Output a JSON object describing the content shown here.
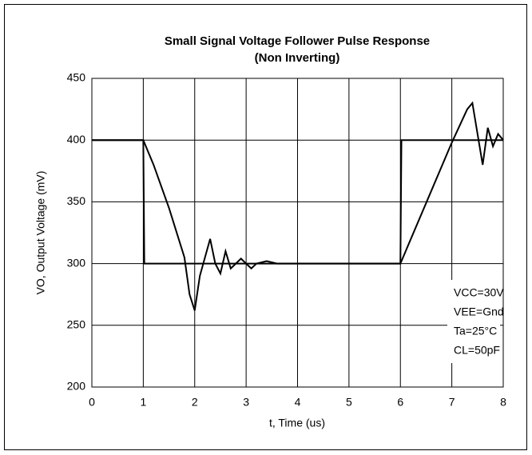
{
  "chart_data": {
    "type": "line",
    "title": "Small Signal Voltage Follower Pulse Response",
    "subtitle": "(Non Inverting)",
    "xlabel": "t, Time (us)",
    "ylabel": "VO, Output Voltage (mV)",
    "xlim": [
      0,
      8
    ],
    "xticks": [
      0,
      1,
      2,
      3,
      4,
      5,
      6,
      7,
      8
    ],
    "ylim": [
      200,
      450
    ],
    "yticks": [
      200,
      250,
      300,
      350,
      400,
      450
    ],
    "grid": true,
    "series": [
      {
        "color": "#000000",
        "x": [
          0,
          1,
          1.02,
          6,
          6.02,
          8
        ],
        "values": [
          400,
          400,
          300,
          300,
          400,
          400
        ]
      },
      {
        "color": "#000000",
        "x": [
          0,
          1,
          1.2,
          1.5,
          1.8,
          1.9,
          2.0,
          2.1,
          2.2,
          2.3,
          2.4,
          2.5,
          2.6,
          2.7,
          2.8,
          2.9,
          3.0,
          3.1,
          3.2,
          3.4,
          3.6,
          3.8,
          6,
          6.5,
          7,
          7.3,
          7.4,
          7.5,
          7.6,
          7.7,
          7.8,
          7.9,
          8
        ],
        "values": [
          400,
          400,
          380,
          345,
          305,
          275,
          262,
          290,
          305,
          320,
          300,
          292,
          310,
          296,
          300,
          304,
          300,
          296,
          300,
          302,
          300,
          300,
          300,
          349,
          398,
          425,
          430,
          405,
          380,
          410,
          395,
          405,
          400
        ]
      }
    ],
    "annotations": [
      "VCC=30V",
      "VEE=Gnd",
      "Ta=25°C",
      "CL=50pF"
    ]
  }
}
